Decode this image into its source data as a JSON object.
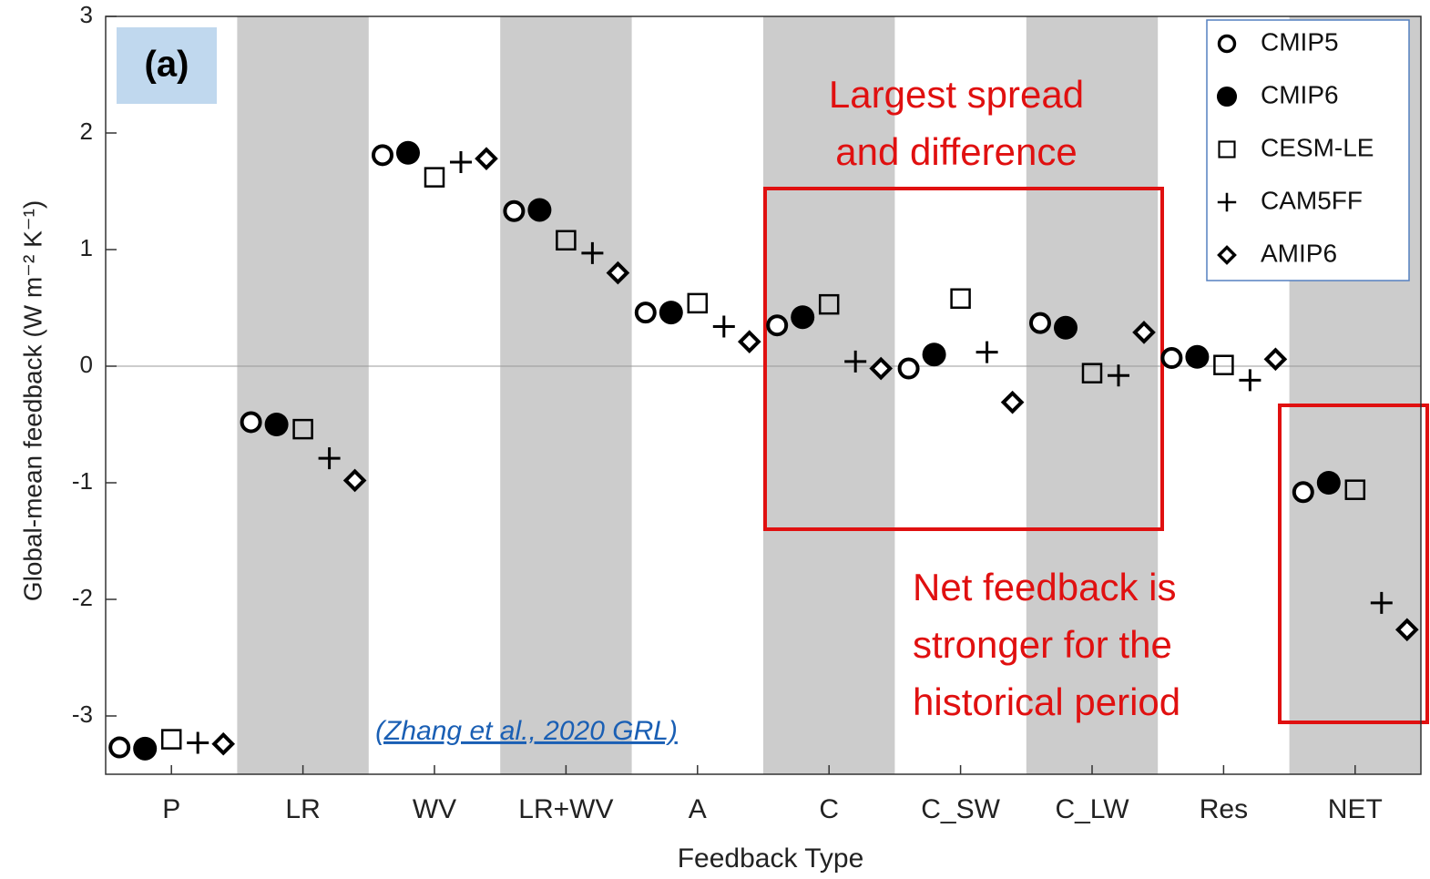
{
  "chart_data": {
    "type": "scatter",
    "panel_label": "(a)",
    "x_label": "Feedback Type",
    "y_label": "Global-mean feedback (W m⁻² K⁻¹)",
    "categories": [
      "P",
      "LR",
      "WV",
      "LR+WV",
      "A",
      "C",
      "C_SW",
      "C_LW",
      "Res",
      "NET"
    ],
    "series": [
      {
        "name": "CMIP5",
        "color": "#000000",
        "marker": "circle-open",
        "values": [
          -3.27,
          -0.48,
          1.81,
          1.33,
          0.46,
          0.35,
          -0.02,
          0.37,
          0.07,
          -1.08
        ]
      },
      {
        "name": "CMIP6",
        "color": "#000000",
        "marker": "circle",
        "values": [
          -3.28,
          -0.5,
          1.83,
          1.34,
          0.46,
          0.42,
          0.1,
          0.33,
          0.08,
          -1.0
        ]
      },
      {
        "name": "CESM-LE",
        "color": "#000000",
        "marker": "square",
        "values": [
          -3.2,
          -0.54,
          1.62,
          1.08,
          0.54,
          0.53,
          0.58,
          -0.06,
          0.01,
          -1.06
        ]
      },
      {
        "name": "CAM5FF",
        "color": "#000000",
        "marker": "plus",
        "values": [
          -3.23,
          -0.79,
          1.75,
          0.97,
          0.34,
          0.04,
          0.12,
          -0.08,
          -0.12,
          -2.03
        ]
      },
      {
        "name": "AMIP6",
        "color": "#000000",
        "marker": "diamond",
        "values": [
          -3.24,
          -0.98,
          1.78,
          0.8,
          0.21,
          -0.02,
          -0.31,
          0.29,
          0.06,
          -2.26
        ]
      }
    ],
    "ylim": [
      -3.5,
      3
    ],
    "yticks": [
      -3,
      -2,
      -1,
      0,
      1,
      2,
      3
    ],
    "annotations": {
      "spread": [
        "Largest spread",
        "and difference"
      ],
      "net": [
        "Net feedback is",
        "stronger for the",
        "historical period"
      ],
      "citation": "(Zhang et al., 2020 GRL)"
    }
  }
}
